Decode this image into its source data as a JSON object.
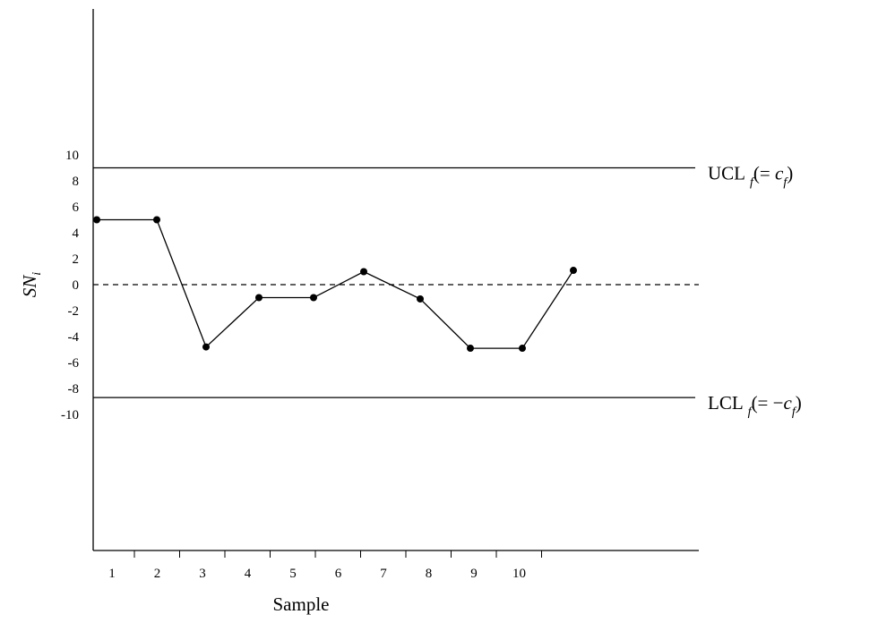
{
  "chart_data": {
    "type": "line",
    "xlabel": "Sample",
    "ylabel_main": "SN",
    "ylabel_sub": "i",
    "x_ticks": [
      "1",
      "2",
      "3",
      "4",
      "5",
      "6",
      "7",
      "8",
      "9",
      "10"
    ],
    "y_ticks": [
      "10",
      "8",
      "6",
      "4",
      "2",
      "0",
      "-2",
      "-4",
      "-6",
      "-8",
      "-10"
    ],
    "ylim": [
      -10,
      10
    ],
    "x": [
      1,
      2,
      3,
      4,
      5,
      6,
      7,
      8,
      9,
      10
    ],
    "series": [
      {
        "values": [
          5,
          5,
          -4.8,
          -1,
          -1,
          1,
          -1.1,
          -4.9,
          -4.9,
          1.1
        ]
      }
    ],
    "ucl": {
      "value": 9,
      "label_main": "UCL",
      "label_sub": "f",
      "label_eq": "(= ",
      "label_c": "c",
      "label_csub": "f",
      "label_close": ")"
    },
    "lcl": {
      "value": -8.7,
      "label_main": "LCL",
      "label_sub": "f",
      "label_eq": "(= −",
      "label_c": "c",
      "label_csub": "f",
      "label_close": ")"
    },
    "center_line": 0,
    "colors": {
      "line": "#000000",
      "points": "#000000"
    }
  }
}
